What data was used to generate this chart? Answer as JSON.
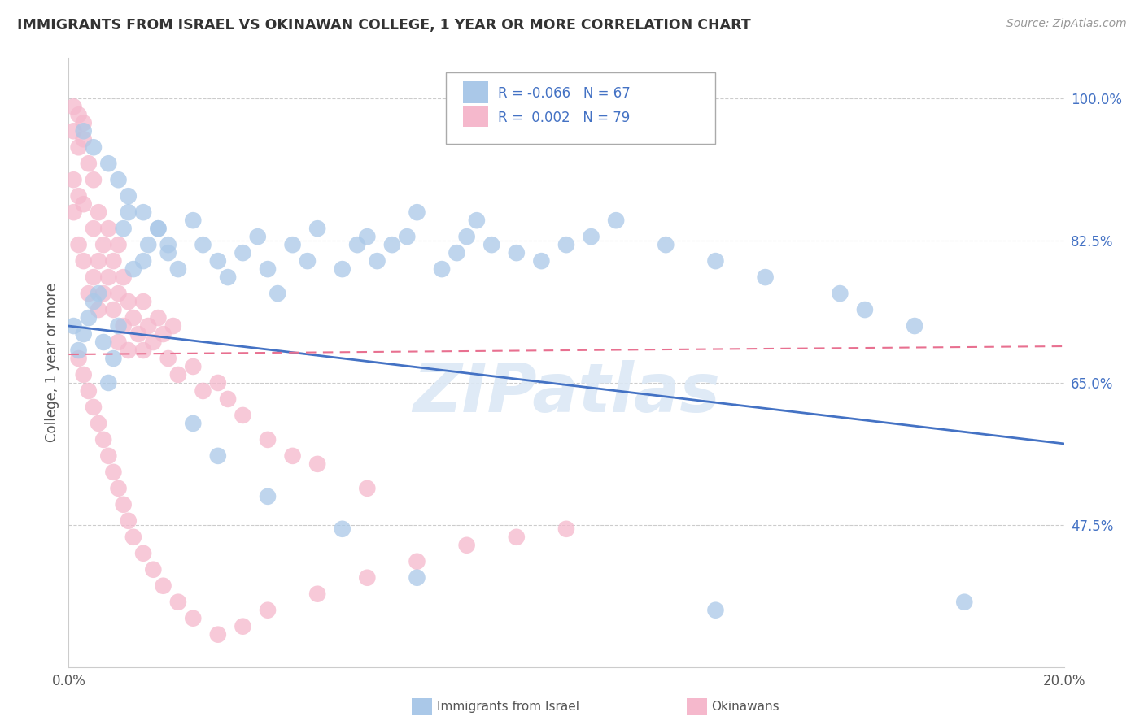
{
  "title": "IMMIGRANTS FROM ISRAEL VS OKINAWAN COLLEGE, 1 YEAR OR MORE CORRELATION CHART",
  "source": "Source: ZipAtlas.com",
  "ylabel": "College, 1 year or more",
  "xlim": [
    0.0,
    0.2
  ],
  "ylim": [
    0.3,
    1.05
  ],
  "xtick_positions": [
    0.0,
    0.2
  ],
  "xtick_labels": [
    "0.0%",
    "20.0%"
  ],
  "ytick_labels": [
    "100.0%",
    "82.5%",
    "65.0%",
    "47.5%"
  ],
  "ytick_values": [
    1.0,
    0.825,
    0.65,
    0.475
  ],
  "watermark": "ZIPatlas",
  "legend_R_blue": "-0.066",
  "legend_N_blue": "67",
  "legend_R_pink": "0.002",
  "legend_N_pink": "79",
  "blue_color": "#aac8e8",
  "pink_color": "#f5b8cc",
  "blue_line_color": "#4472c4",
  "pink_line_color": "#e87090",
  "blue_line_y0": 0.72,
  "blue_line_y1": 0.575,
  "pink_line_y0": 0.685,
  "pink_line_y1": 0.695,
  "blue_x": [
    0.001,
    0.002,
    0.003,
    0.004,
    0.005,
    0.006,
    0.007,
    0.008,
    0.009,
    0.01,
    0.011,
    0.012,
    0.013,
    0.015,
    0.016,
    0.018,
    0.02,
    0.022,
    0.025,
    0.027,
    0.03,
    0.032,
    0.035,
    0.038,
    0.04,
    0.042,
    0.045,
    0.048,
    0.05,
    0.055,
    0.058,
    0.06,
    0.062,
    0.065,
    0.068,
    0.07,
    0.075,
    0.078,
    0.08,
    0.082,
    0.085,
    0.09,
    0.095,
    0.1,
    0.105,
    0.11,
    0.12,
    0.13,
    0.14,
    0.155,
    0.16,
    0.17,
    0.003,
    0.005,
    0.008,
    0.01,
    0.012,
    0.015,
    0.018,
    0.02,
    0.025,
    0.03,
    0.04,
    0.055,
    0.07,
    0.13,
    0.18
  ],
  "blue_y": [
    0.72,
    0.69,
    0.71,
    0.73,
    0.75,
    0.76,
    0.7,
    0.65,
    0.68,
    0.72,
    0.84,
    0.86,
    0.79,
    0.8,
    0.82,
    0.84,
    0.81,
    0.79,
    0.85,
    0.82,
    0.8,
    0.78,
    0.81,
    0.83,
    0.79,
    0.76,
    0.82,
    0.8,
    0.84,
    0.79,
    0.82,
    0.83,
    0.8,
    0.82,
    0.83,
    0.86,
    0.79,
    0.81,
    0.83,
    0.85,
    0.82,
    0.81,
    0.8,
    0.82,
    0.83,
    0.85,
    0.82,
    0.8,
    0.78,
    0.76,
    0.74,
    0.72,
    0.96,
    0.94,
    0.92,
    0.9,
    0.88,
    0.86,
    0.84,
    0.82,
    0.6,
    0.56,
    0.51,
    0.47,
    0.41,
    0.37,
    0.38
  ],
  "pink_x": [
    0.001,
    0.001,
    0.001,
    0.002,
    0.002,
    0.002,
    0.003,
    0.003,
    0.003,
    0.004,
    0.004,
    0.005,
    0.005,
    0.005,
    0.006,
    0.006,
    0.006,
    0.007,
    0.007,
    0.008,
    0.008,
    0.009,
    0.009,
    0.01,
    0.01,
    0.01,
    0.011,
    0.011,
    0.012,
    0.012,
    0.013,
    0.014,
    0.015,
    0.015,
    0.016,
    0.017,
    0.018,
    0.019,
    0.02,
    0.021,
    0.022,
    0.025,
    0.027,
    0.03,
    0.032,
    0.035,
    0.04,
    0.045,
    0.05,
    0.06,
    0.002,
    0.003,
    0.004,
    0.005,
    0.006,
    0.007,
    0.008,
    0.009,
    0.01,
    0.011,
    0.012,
    0.013,
    0.015,
    0.017,
    0.019,
    0.022,
    0.025,
    0.03,
    0.035,
    0.04,
    0.05,
    0.06,
    0.07,
    0.08,
    0.09,
    0.1,
    0.001,
    0.002,
    0.003
  ],
  "pink_y": [
    0.96,
    0.9,
    0.86,
    0.94,
    0.88,
    0.82,
    0.95,
    0.87,
    0.8,
    0.92,
    0.76,
    0.9,
    0.84,
    0.78,
    0.86,
    0.8,
    0.74,
    0.82,
    0.76,
    0.84,
    0.78,
    0.8,
    0.74,
    0.82,
    0.76,
    0.7,
    0.78,
    0.72,
    0.75,
    0.69,
    0.73,
    0.71,
    0.75,
    0.69,
    0.72,
    0.7,
    0.73,
    0.71,
    0.68,
    0.72,
    0.66,
    0.67,
    0.64,
    0.65,
    0.63,
    0.61,
    0.58,
    0.56,
    0.55,
    0.52,
    0.68,
    0.66,
    0.64,
    0.62,
    0.6,
    0.58,
    0.56,
    0.54,
    0.52,
    0.5,
    0.48,
    0.46,
    0.44,
    0.42,
    0.4,
    0.38,
    0.36,
    0.34,
    0.35,
    0.37,
    0.39,
    0.41,
    0.43,
    0.45,
    0.46,
    0.47,
    0.99,
    0.98,
    0.97
  ]
}
